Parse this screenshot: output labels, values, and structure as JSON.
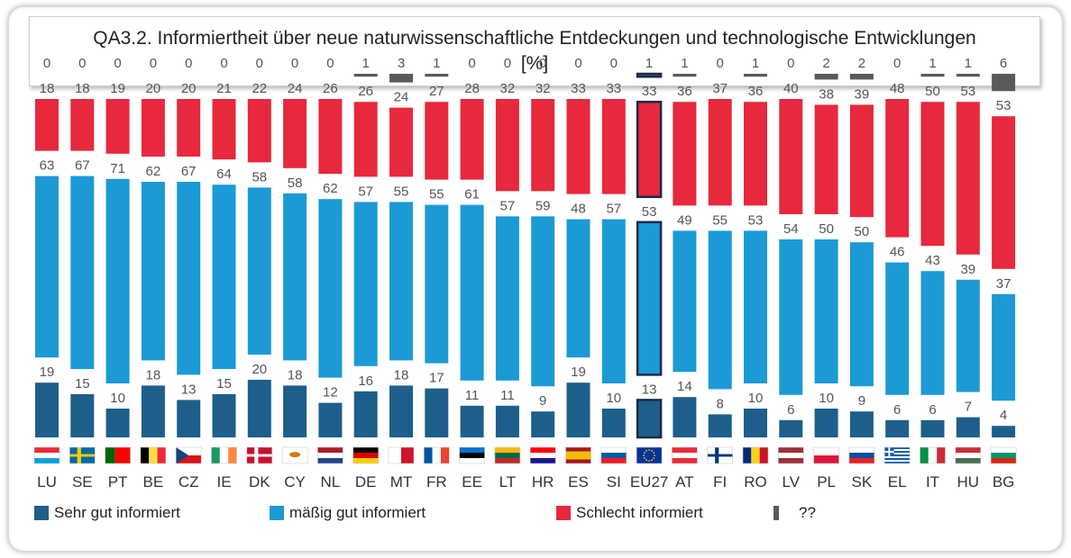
{
  "title_line1": "QA3.2. Informiertheit über neue naturwissenschaftliche Entdeckungen und technologische Entwicklungen",
  "title_line2": "[%]",
  "legend": [
    {
      "label": "Sehr gut informiert",
      "color": "#1d5f8a"
    },
    {
      "label": "mäßig gut informiert",
      "color": "#1b9ad6"
    },
    {
      "label": "Schlecht informiert",
      "color": "#e8283c"
    },
    {
      "label": "??",
      "color": "#5a5a5a"
    }
  ],
  "chart_data": {
    "type": "bar",
    "stacked": true,
    "categories": [
      "LU",
      "SE",
      "PT",
      "BE",
      "CZ",
      "IE",
      "DK",
      "CY",
      "NL",
      "DE",
      "MT",
      "FR",
      "EE",
      "LT",
      "HR",
      "ES",
      "SI",
      "EU27",
      "AT",
      "FI",
      "RO",
      "LV",
      "PL",
      "SK",
      "EL",
      "IT",
      "HU",
      "BG"
    ],
    "highlight": "EU27",
    "series": [
      {
        "name": "Sehr gut informiert",
        "color": "#1d5f8a",
        "values": [
          19,
          15,
          10,
          18,
          13,
          15,
          20,
          18,
          12,
          16,
          18,
          17,
          11,
          11,
          9,
          19,
          10,
          13,
          14,
          8,
          10,
          6,
          10,
          9,
          6,
          6,
          7,
          4
        ]
      },
      {
        "name": "mäßig gut informiert",
        "color": "#1b9ad6",
        "values": [
          63,
          67,
          71,
          62,
          67,
          64,
          58,
          58,
          62,
          57,
          55,
          55,
          61,
          57,
          59,
          48,
          57,
          53,
          49,
          55,
          53,
          54,
          50,
          50,
          46,
          43,
          39,
          37
        ]
      },
      {
        "name": "Schlecht informiert",
        "color": "#e8283c",
        "values": [
          18,
          18,
          19,
          20,
          20,
          21,
          22,
          24,
          26,
          26,
          24,
          27,
          28,
          32,
          32,
          33,
          33,
          33,
          36,
          37,
          36,
          40,
          38,
          39,
          48,
          50,
          53,
          53
        ]
      },
      {
        "name": "??",
        "color": "#5a5a5a",
        "values": [
          0,
          0,
          0,
          0,
          0,
          0,
          0,
          0,
          0,
          1,
          3,
          1,
          0,
          0,
          0,
          0,
          0,
          1,
          1,
          0,
          1,
          0,
          2,
          2,
          0,
          1,
          1,
          6
        ]
      }
    ]
  }
}
